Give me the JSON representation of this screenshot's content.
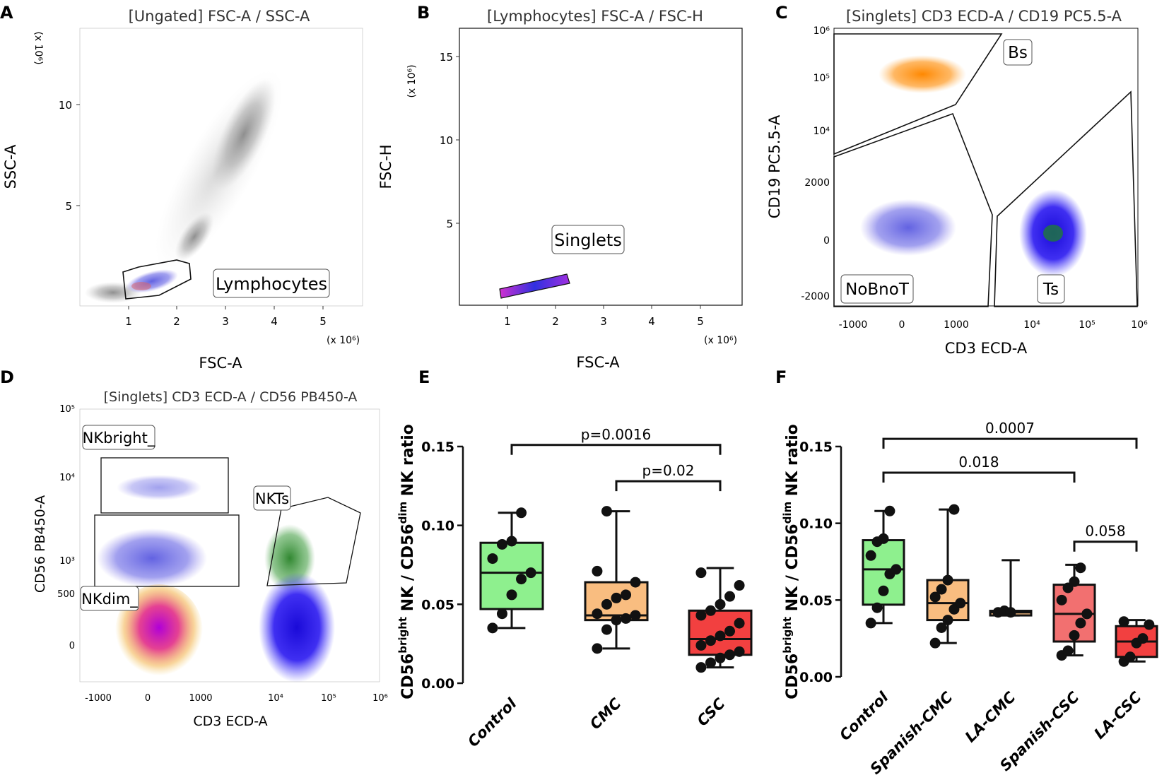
{
  "panels": {
    "A": {
      "letter": "A",
      "title": "[Ungated] FSC-A / SSC-A",
      "xlabel": "FSC-A",
      "ylabel": "SSC-A",
      "x_exp": "(x 10⁶)",
      "y_exp": "(x 10⁶)",
      "xticks": [
        "1",
        "2",
        "3",
        "4",
        "5"
      ],
      "yticks": [
        "5",
        "10"
      ],
      "gate_label": "Lymphocytes"
    },
    "B": {
      "letter": "B",
      "title": "[Lymphocytes] FSC-A / FSC-H",
      "xlabel": "FSC-A",
      "ylabel": "FSC-H",
      "x_exp": "(x 10⁶)",
      "y_exp": "(x 10⁶)",
      "xticks": [
        "1",
        "2",
        "3",
        "4",
        "5"
      ],
      "yticks": [
        "5",
        "10",
        "15"
      ],
      "gate_label": "Singlets"
    },
    "C": {
      "letter": "C",
      "title": "[Singlets] CD3 ECD-A / CD19 PC5.5-A",
      "xlabel": "CD3 ECD-A",
      "ylabel": "CD19 PC5.5-A",
      "xticks": [
        "-1000",
        "0",
        "1000",
        "10⁴",
        "10⁵",
        "10⁶"
      ],
      "yticks": [
        "-2000",
        "0",
        "2000",
        "10⁴",
        "10⁵",
        "10⁶"
      ],
      "gates": [
        "Bs",
        "NoBnoT",
        "Ts"
      ]
    },
    "D": {
      "letter": "D",
      "title": "[Singlets] CD3 ECD-A / CD56 PB450-A",
      "xlabel": "CD3 ECD-A",
      "ylabel": "CD56 PB450-A",
      "xticks": [
        "-1000",
        "0",
        "1000",
        "10⁴",
        "10⁵",
        "10⁶"
      ],
      "yticks": [
        "0",
        "500",
        "10³",
        "10⁴",
        "10⁵"
      ],
      "gates": [
        "NKbright_",
        "NKTs",
        "NKdim_"
      ]
    },
    "E": {
      "letter": "E"
    },
    "F": {
      "letter": "F"
    }
  },
  "chart_data": [
    {
      "panel": "E",
      "type": "box",
      "ylabel_main": "CD56",
      "ylabel_sup1": "bright",
      "ylabel_mid": " NK / CD56",
      "ylabel_sup2": "dim",
      "ylabel_end": " NK ratio",
      "ylim": [
        0,
        0.15
      ],
      "yticks": [
        "0.00",
        "0.05",
        "0.10",
        "0.15"
      ],
      "ytick_values": [
        0,
        0.05,
        0.1,
        0.15
      ],
      "categories": [
        "Control",
        "CMC",
        "CSC"
      ],
      "colors": [
        "#8ef08e",
        "#f9bd80",
        "#f24040"
      ],
      "boxes": [
        {
          "min": 0.035,
          "q1": 0.047,
          "median": 0.07,
          "q3": 0.089,
          "max": 0.108,
          "points": [
            0.035,
            0.044,
            0.056,
            0.066,
            0.07,
            0.079,
            0.088,
            0.09,
            0.108
          ]
        },
        {
          "min": 0.022,
          "q1": 0.04,
          "median": 0.043,
          "q3": 0.064,
          "max": 0.109,
          "points": [
            0.022,
            0.034,
            0.04,
            0.041,
            0.043,
            0.044,
            0.05,
            0.054,
            0.056,
            0.064,
            0.071,
            0.109
          ]
        },
        {
          "min": 0.01,
          "q1": 0.018,
          "median": 0.028,
          "q3": 0.046,
          "max": 0.073,
          "points": [
            0.01,
            0.013,
            0.016,
            0.018,
            0.02,
            0.024,
            0.027,
            0.03,
            0.033,
            0.038,
            0.043,
            0.046,
            0.05,
            0.055,
            0.062,
            0.07
          ]
        }
      ],
      "brackets": [
        {
          "from": 0,
          "to": 2,
          "label": "p=0.0016",
          "y": 0.151
        },
        {
          "from": 1,
          "to": 2,
          "label": "p=0.02",
          "y": 0.128
        }
      ]
    },
    {
      "panel": "F",
      "type": "box",
      "ylabel_main": "CD56",
      "ylabel_sup1": "bright",
      "ylabel_mid": " NK / CD56",
      "ylabel_sup2": "dim",
      "ylabel_end": " NK ratio",
      "ylim": [
        0,
        0.15
      ],
      "yticks": [
        "0.00",
        "0.05",
        "0.10",
        "0.15"
      ],
      "ytick_values": [
        0,
        0.05,
        0.1,
        0.15
      ],
      "categories": [
        "Control",
        "Spanish-CMC",
        "LA-CMC",
        "Spanish-CSC",
        "LA-CSC"
      ],
      "colors": [
        "#8ef08e",
        "#f9bd80",
        "#f9bd80",
        "#f27070",
        "#f24040"
      ],
      "boxes": [
        {
          "min": 0.035,
          "q1": 0.047,
          "median": 0.07,
          "q3": 0.089,
          "max": 0.108,
          "points": [
            0.035,
            0.045,
            0.056,
            0.067,
            0.07,
            0.079,
            0.088,
            0.09,
            0.108
          ]
        },
        {
          "min": 0.022,
          "q1": 0.037,
          "median": 0.048,
          "q3": 0.063,
          "max": 0.109,
          "points": [
            0.022,
            0.032,
            0.037,
            0.044,
            0.048,
            0.052,
            0.057,
            0.063,
            0.109
          ]
        },
        {
          "min": 0.04,
          "q1": 0.04,
          "median": 0.042,
          "q3": 0.043,
          "max": 0.076,
          "points": [
            0.042,
            0.043,
            0.042
          ]
        },
        {
          "min": 0.014,
          "q1": 0.023,
          "median": 0.041,
          "q3": 0.06,
          "max": 0.073,
          "points": [
            0.014,
            0.017,
            0.027,
            0.035,
            0.041,
            0.05,
            0.058,
            0.062,
            0.071
          ]
        },
        {
          "min": 0.01,
          "q1": 0.013,
          "median": 0.023,
          "q3": 0.033,
          "max": 0.037,
          "points": [
            0.01,
            0.013,
            0.022,
            0.025,
            0.034,
            0.036
          ]
        }
      ],
      "brackets": [
        {
          "from": 0,
          "to": 4,
          "label": "0.0007",
          "y": 0.155
        },
        {
          "from": 0,
          "to": 3,
          "label": "0.018",
          "y": 0.133
        },
        {
          "from": 3,
          "to": 4,
          "label": "0.058",
          "y": 0.088
        }
      ]
    }
  ]
}
